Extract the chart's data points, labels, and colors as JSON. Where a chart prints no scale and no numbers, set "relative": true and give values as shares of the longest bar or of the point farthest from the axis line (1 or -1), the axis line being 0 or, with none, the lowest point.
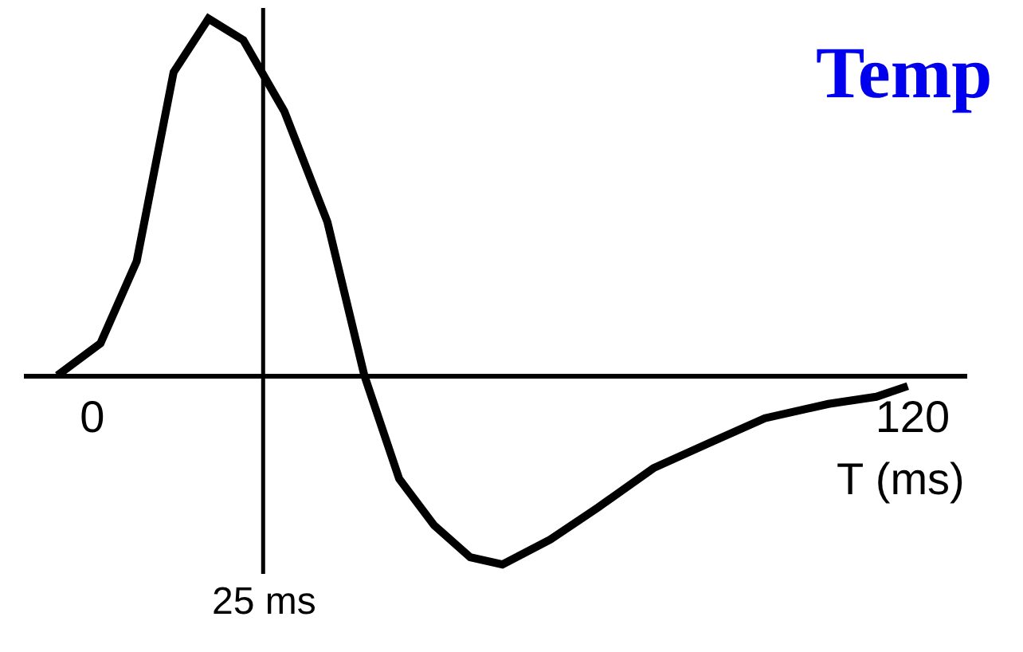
{
  "chart_data": {
    "type": "line",
    "title": "Temp",
    "xlabel": "T (ms)",
    "relative": true,
    "x": [
      -5.1,
      1.2,
      6.5,
      11.9,
      17.0,
      22.1,
      28.1,
      34.4,
      39.8,
      44.9,
      50.0,
      55.3,
      60.0,
      67.0,
      74.0,
      82.1,
      90.2,
      98.4,
      107.7,
      114.7,
      119.3
    ],
    "series": [
      {
        "color": "#000000",
        "values": [
          0,
          0.09,
          0.32,
          0.85,
          1,
          0.94,
          0.74,
          0.43,
          0,
          -0.29,
          -0.42,
          -0.51,
          -0.53,
          -0.46,
          -0.37,
          -0.26,
          -0.19,
          -0.12,
          -0.08,
          -0.06,
          -0.03
        ]
      }
    ],
    "xlim": [
      -10,
      128
    ],
    "xticks": [
      0,
      120
    ],
    "ref_lines": [
      {
        "axis": "x",
        "value": 25,
        "label": "25 ms",
        "color": "#000000"
      }
    ],
    "grid": false,
    "marker": "none",
    "line_style": "solid"
  }
}
